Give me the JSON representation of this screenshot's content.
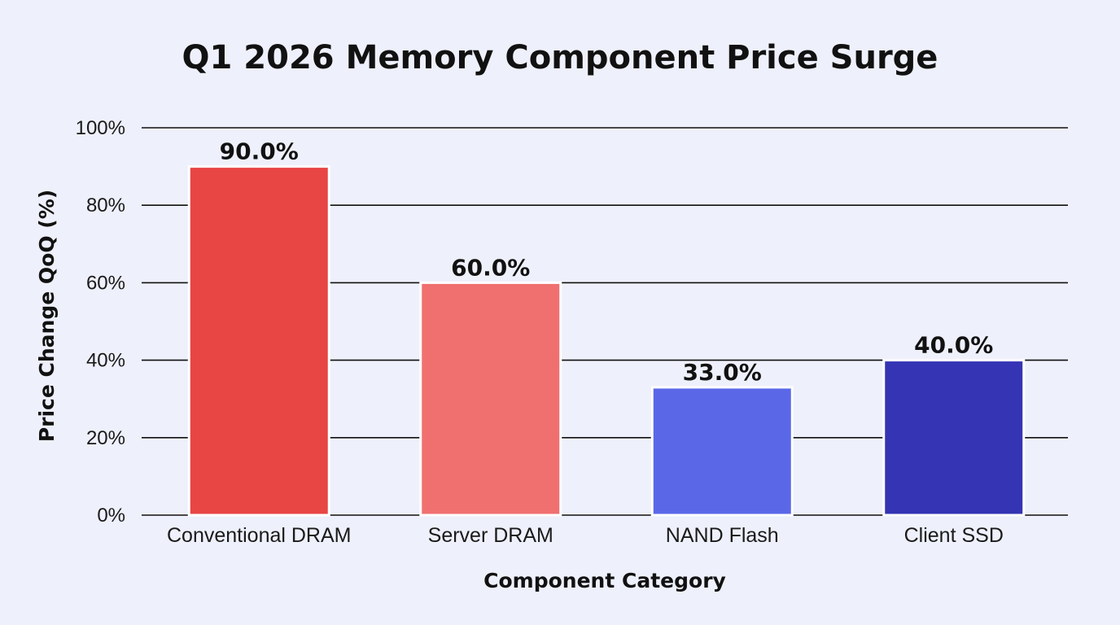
{
  "chart_data": {
    "type": "bar",
    "title": "Q1 2026 Memory Component Price Surge",
    "xlabel": "Component Category",
    "ylabel": "Price Change QoQ (%)",
    "categories": [
      "Conventional DRAM",
      "Server DRAM",
      "NAND Flash",
      "Client SSD"
    ],
    "values": [
      90.0,
      60.0,
      33.0,
      40.0
    ],
    "value_labels": [
      "90.0%",
      "60.0%",
      "33.0%",
      "40.0%"
    ],
    "bar_colors": [
      "#e84545",
      "#f07070",
      "#5a68e8",
      "#3434b4"
    ],
    "ylim": [
      0,
      100
    ],
    "yticks": [
      0,
      20,
      40,
      60,
      80,
      100
    ],
    "ytick_labels": [
      "0%",
      "20%",
      "40%",
      "60%",
      "80%",
      "100%"
    ],
    "grid": true,
    "legend": "none"
  }
}
